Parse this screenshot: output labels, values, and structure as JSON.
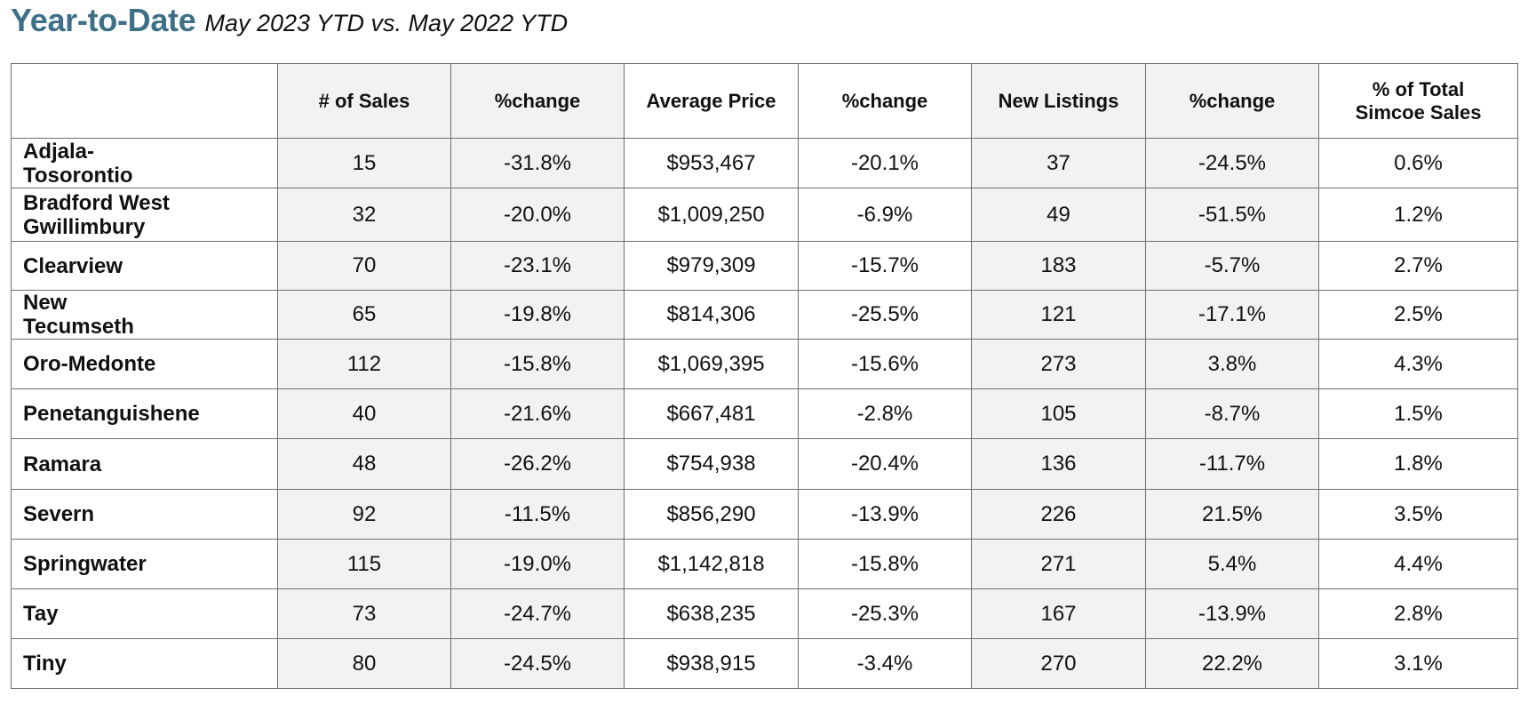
{
  "header": {
    "title": "Year-to-Date",
    "subtitle": "May 2023 YTD vs. May 2022 YTD"
  },
  "table": {
    "columns": [
      "",
      "# of Sales",
      "%change",
      "Average Price",
      "%change",
      "New Listings",
      "%change",
      "% of Total Simcoe Sales"
    ],
    "rows": [
      {
        "area": "Adjala-Tosorontio",
        "sales": "15",
        "sales_change": "-31.8%",
        "avg_price": "$953,467",
        "price_change": "-20.1%",
        "new_listings": "37",
        "listings_change": "-24.5%",
        "pct_total": "0.6%"
      },
      {
        "area": "Bradford West Gwillimbury",
        "sales": "32",
        "sales_change": "-20.0%",
        "avg_price": "$1,009,250",
        "price_change": "-6.9%",
        "new_listings": "49",
        "listings_change": "-51.5%",
        "pct_total": "1.2%"
      },
      {
        "area": "Clearview",
        "sales": "70",
        "sales_change": "-23.1%",
        "avg_price": "$979,309",
        "price_change": "-15.7%",
        "new_listings": "183",
        "listings_change": "-5.7%",
        "pct_total": "2.7%"
      },
      {
        "area": "New Tecumseth",
        "sales": "65",
        "sales_change": "-19.8%",
        "avg_price": "$814,306",
        "price_change": "-25.5%",
        "new_listings": "121",
        "listings_change": "-17.1%",
        "pct_total": "2.5%"
      },
      {
        "area": "Oro-Medonte",
        "sales": "112",
        "sales_change": "-15.8%",
        "avg_price": "$1,069,395",
        "price_change": "-15.6%",
        "new_listings": "273",
        "listings_change": "3.8%",
        "pct_total": "4.3%"
      },
      {
        "area": "Penetanguishene",
        "sales": "40",
        "sales_change": "-21.6%",
        "avg_price": "$667,481",
        "price_change": "-2.8%",
        "new_listings": "105",
        "listings_change": "-8.7%",
        "pct_total": "1.5%"
      },
      {
        "area": "Ramara",
        "sales": "48",
        "sales_change": "-26.2%",
        "avg_price": "$754,938",
        "price_change": "-20.4%",
        "new_listings": "136",
        "listings_change": "-11.7%",
        "pct_total": "1.8%"
      },
      {
        "area": "Severn",
        "sales": "92",
        "sales_change": "-11.5%",
        "avg_price": "$856,290",
        "price_change": "-13.9%",
        "new_listings": "226",
        "listings_change": "21.5%",
        "pct_total": "3.5%"
      },
      {
        "area": "Springwater",
        "sales": "115",
        "sales_change": "-19.0%",
        "avg_price": "$1,142,818",
        "price_change": "-15.8%",
        "new_listings": "271",
        "listings_change": "5.4%",
        "pct_total": "4.4%"
      },
      {
        "area": "Tay",
        "sales": "73",
        "sales_change": "-24.7%",
        "avg_price": "$638,235",
        "price_change": "-25.3%",
        "new_listings": "167",
        "listings_change": "-13.9%",
        "pct_total": "2.8%"
      },
      {
        "area": "Tiny",
        "sales": "80",
        "sales_change": "-24.5%",
        "avg_price": "$938,915",
        "price_change": "-3.4%",
        "new_listings": "270",
        "listings_change": "22.2%",
        "pct_total": "3.1%"
      }
    ]
  },
  "colors": {
    "title": "#3e7088",
    "shade": "#f2f2f2",
    "border": "#6f6f6f"
  }
}
